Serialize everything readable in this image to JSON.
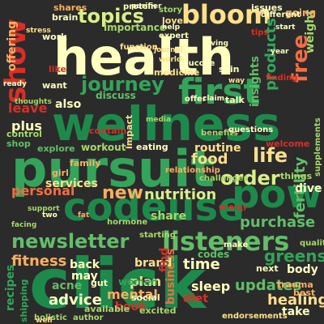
{
  "colors": {
    "background": "#2b2b2b",
    "palette": [
      "#1d8a4c",
      "#33a45a",
      "#62be69",
      "#a6d96a",
      "#d9ef8b",
      "#ffffbf",
      "#fee08b",
      "#fdae61",
      "#f46d43",
      "#d73027"
    ]
  },
  "words": [
    {
      "text": "health",
      "color": "#ffffbf"
    },
    {
      "text": "wellness",
      "color": "#1d8a4c"
    },
    {
      "text": "pursuit",
      "color": "#33a45a"
    },
    {
      "text": "click",
      "color": "#1d8a4c"
    },
    {
      "text": "codeuse",
      "color": "#1d8a4c"
    },
    {
      "text": "pow",
      "color": "#1d8a4c"
    },
    {
      "text": "first",
      "color": "#33a45a"
    },
    {
      "text": "show",
      "color": "#d73027"
    },
    {
      "text": "bloom",
      "color": "#fee08b"
    },
    {
      "text": "topics",
      "color": "#d9ef8b"
    },
    {
      "text": "journey",
      "color": "#33a45a"
    },
    {
      "text": "listeners",
      "color": "#62be69"
    },
    {
      "text": "newsletter",
      "color": "#62be69"
    },
    {
      "text": "order",
      "color": "#d9ef8b"
    },
    {
      "text": "life",
      "color": "#fee08b"
    },
    {
      "text": "free",
      "color": "#f46d43"
    },
    {
      "text": "new",
      "color": "#fdae61"
    },
    {
      "text": "nutrition",
      "color": "#d9ef8b"
    },
    {
      "text": "purchase",
      "color": "#62be69"
    },
    {
      "text": "personal",
      "color": "#f46d43"
    },
    {
      "text": "fitness",
      "color": "#fdae61"
    },
    {
      "text": "greens",
      "color": "#33a45a"
    },
    {
      "text": "updates",
      "color": "#62be69"
    },
    {
      "text": "products",
      "color": "#33a45a"
    },
    {
      "text": "fertility",
      "color": "#62be69"
    },
    {
      "text": "weight",
      "color": "#a6d96a"
    },
    {
      "text": "insights",
      "color": "#62be69"
    },
    {
      "text": "food",
      "color": "#fee08b"
    },
    {
      "text": "time",
      "color": "#ffffbf"
    },
    {
      "text": "advice",
      "color": "#ffffbf"
    },
    {
      "text": "healing",
      "color": "#fee08b"
    },
    {
      "text": "mental",
      "color": "#fdae61"
    },
    {
      "text": "share",
      "color": "#a6d96a"
    },
    {
      "text": "plus",
      "color": "#ffffbf"
    },
    {
      "text": "also",
      "color": "#ffffbf"
    },
    {
      "text": "leave",
      "color": "#d73027"
    },
    {
      "text": "offering",
      "color": "#fdae61"
    },
    {
      "text": "recipes",
      "color": "#33a45a"
    },
    {
      "text": "plan",
      "color": "#fee08b"
    },
    {
      "text": "book",
      "color": "#d73027"
    },
    {
      "text": "sleep",
      "color": "#ffffbf"
    },
    {
      "text": "body",
      "color": "#ffffbf"
    },
    {
      "text": "take",
      "color": "#ffffbf"
    },
    {
      "text": "business",
      "color": "#f46d43"
    },
    {
      "text": "diet",
      "color": "#d73027"
    },
    {
      "text": "brand",
      "color": "#fee08b"
    },
    {
      "text": "back",
      "color": "#ffffbf"
    },
    {
      "text": "may",
      "color": "#ffffbf"
    },
    {
      "text": "acne",
      "color": "#62be69"
    },
    {
      "text": "women",
      "color": "#33a45a"
    },
    {
      "text": "codes",
      "color": "#62be69"
    },
    {
      "text": "find",
      "color": "#d73027"
    },
    {
      "text": "routine",
      "color": "#fee08b"
    },
    {
      "text": "services",
      "color": "#fee08b"
    },
    {
      "text": "workout",
      "color": "#a6d96a"
    },
    {
      "text": "going",
      "color": "#fdae61"
    },
    {
      "text": "importance",
      "color": "#a6d96a"
    },
    {
      "text": "discuss",
      "color": "#62be69"
    },
    {
      "text": "shop",
      "color": "#62be69"
    },
    {
      "text": "control",
      "color": "#a6d96a"
    },
    {
      "text": "explore",
      "color": "#62be69"
    },
    {
      "text": "family",
      "color": "#fdae61"
    },
    {
      "text": "girl",
      "color": "#fdae61"
    },
    {
      "text": "impact",
      "color": "#fee08b"
    },
    {
      "text": "welcome",
      "color": "#d73027"
    },
    {
      "text": "dive",
      "color": "#ffffbf"
    },
    {
      "text": "things",
      "color": "#a6d96a"
    },
    {
      "text": "next",
      "color": "#ffffbf"
    },
    {
      "text": "trauma",
      "color": "#fdae61"
    },
    {
      "text": "best",
      "color": "#fdae61"
    },
    {
      "text": "available",
      "color": "#a6d96a"
    },
    {
      "text": "excited",
      "color": "#a6d96a"
    },
    {
      "text": "social",
      "color": "#ffffbf"
    },
    {
      "text": "gut",
      "color": "#ffffbf"
    },
    {
      "text": "talk",
      "color": "#ffffbf"
    },
    {
      "text": "eating",
      "color": "#ffffbf"
    },
    {
      "text": "like",
      "color": "#d73027"
    },
    {
      "text": "want",
      "color": "#ffffbf"
    },
    {
      "text": "shares",
      "color": "#fdae61"
    },
    {
      "text": "brain",
      "color": "#ffffbf"
    },
    {
      "text": "love",
      "color": "#fee08b"
    },
    {
      "text": "issues",
      "color": "#ffffbf"
    },
    {
      "text": "skin",
      "color": "#ffffbf"
    },
    {
      "text": "medicine",
      "color": "#fee08b"
    },
    {
      "text": "work",
      "color": "#ffffbf"
    },
    {
      "text": "contain",
      "color": "#d73027"
    },
    {
      "text": "shipping",
      "color": "#33a45a"
    },
    {
      "text": "holistic",
      "color": "#a6d96a"
    },
    {
      "text": "author",
      "color": "#a6d96a"
    },
    {
      "text": "quality",
      "color": "#a6d96a"
    },
    {
      "text": "endorsements",
      "color": "#fee08b"
    },
    {
      "text": "benefits",
      "color": "#a6d96a"
    },
    {
      "text": "relationship",
      "color": "#fdae61"
    },
    {
      "text": "challenges",
      "color": "#a6d96a"
    },
    {
      "text": "questions",
      "color": "#ffffbf"
    },
    {
      "text": "starting",
      "color": "#a6d96a"
    },
    {
      "text": "hormone",
      "color": "#a6d96a"
    },
    {
      "text": "offer",
      "color": "#ffffbf"
    },
    {
      "text": "finding",
      "color": "#d73027"
    },
    {
      "text": "protein",
      "color": "#ffffbf"
    },
    {
      "text": "story",
      "color": "#a6d96a"
    },
    {
      "text": "different",
      "color": "#ffffbf"
    },
    {
      "text": "expert",
      "color": "#ffffbf"
    },
    {
      "text": "function",
      "color": "#fee08b"
    },
    {
      "text": "glucose",
      "color": "#ffffbf"
    },
    {
      "text": "tips",
      "color": "#d73027"
    },
    {
      "text": "make",
      "color": "#ffffbf"
    },
    {
      "text": "ready",
      "color": "#ffffbf"
    },
    {
      "text": "thoughts",
      "color": "#a6d96a"
    },
    {
      "text": "way",
      "color": "#fee08b"
    },
    {
      "text": "facing",
      "color": "#a6d96a"
    },
    {
      "text": "two",
      "color": "#ffffbf"
    },
    {
      "text": "support",
      "color": "#a6d96a"
    },
    {
      "text": "media",
      "color": "#a6d96a"
    },
    {
      "text": "journal",
      "color": "#fee08b"
    },
    {
      "text": "purifier",
      "color": "#ffffbf"
    },
    {
      "text": "world",
      "color": "#fee08b"
    },
    {
      "text": "supplements",
      "color": "#a6d96a"
    },
    {
      "text": "claim",
      "color": "#ffffbf"
    },
    {
      "text": "fat",
      "color": "#fdae61"
    },
    {
      "text": "stress",
      "color": "#fee08b"
    },
    {
      "text": "help",
      "color": "#ffffbf"
    },
    {
      "text": "start",
      "color": "#ffffbf"
    },
    {
      "text": "year",
      "color": "#ffffbf"
    },
    {
      "text": "well",
      "color": "#fee08b"
    },
    {
      "text": "living",
      "color": "#ffffbf"
    },
    {
      "text": "energy",
      "color": "#d73027"
    }
  ]
}
